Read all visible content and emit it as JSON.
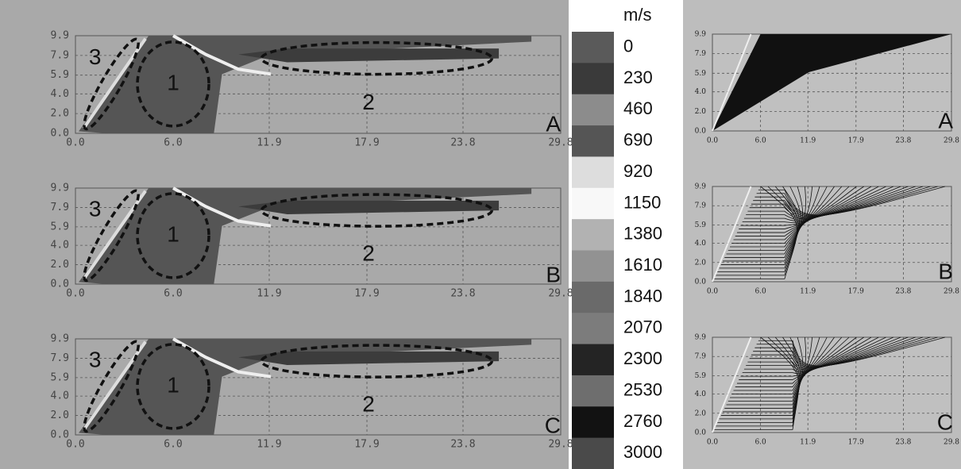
{
  "left_panels": [
    {
      "letter": "A",
      "xticks": [
        "0.0",
        "6.0",
        "11.9",
        "17.9",
        "23.8",
        "29.8"
      ],
      "yticks": [
        "9.9",
        "7.9",
        "5.9",
        "4.0",
        "2.0",
        "0.0"
      ],
      "regions": [
        "1",
        "2",
        "3"
      ]
    },
    {
      "letter": "B",
      "xticks": [
        "0.0",
        "6.0",
        "11.9",
        "17.9",
        "23.8",
        "29.8"
      ],
      "yticks": [
        "9.9",
        "7.9",
        "5.9",
        "4.0",
        "2.0",
        "0.0"
      ],
      "regions": [
        "1",
        "2",
        "3"
      ]
    },
    {
      "letter": "C",
      "xticks": [
        "0.0",
        "6.0",
        "11.9",
        "17.9",
        "23.8",
        "29.8"
      ],
      "yticks": [
        "9.9",
        "7.9",
        "5.9",
        "4.0",
        "2.0",
        "0.0"
      ],
      "regions": [
        "1",
        "2",
        "3"
      ]
    }
  ],
  "colorbar": {
    "unit": "m/s",
    "labels": [
      "0",
      "230",
      "460",
      "690",
      "920",
      "1150",
      "1380",
      "1610",
      "1840",
      "2070",
      "2300",
      "2530",
      "2760",
      "3000"
    ],
    "colors": [
      "#5a5a5a",
      "#3a3a3a",
      "#8c8c8c",
      "#555555",
      "#dddddd",
      "#f8f8f8",
      "#b2b2b2",
      "#929292",
      "#6a6a6a",
      "#7c7c7c",
      "#242424",
      "#6e6e6e",
      "#121212",
      "#4a4a4a"
    ]
  },
  "right_panels": [
    {
      "letter": "A",
      "xticks": [
        "0.0",
        "6.0",
        "11.9",
        "17.9",
        "23.8",
        "29.8"
      ],
      "yticks": [
        "9.9",
        "7.9",
        "5.9",
        "4.0",
        "2.0",
        "0.0"
      ]
    },
    {
      "letter": "B",
      "xticks": [
        "0.0",
        "6.0",
        "11.9",
        "17.9",
        "23.8",
        "29.8"
      ],
      "yticks": [
        "9.9",
        "7.9",
        "5.9",
        "4.0",
        "2.0",
        "0.0"
      ]
    },
    {
      "letter": "C",
      "xticks": [
        "0.0",
        "6.0",
        "11.9",
        "17.9",
        "23.8",
        "29.8"
      ],
      "yticks": [
        "9.9",
        "7.9",
        "5.9",
        "4.0",
        "2.0",
        "0.0"
      ]
    }
  ]
}
